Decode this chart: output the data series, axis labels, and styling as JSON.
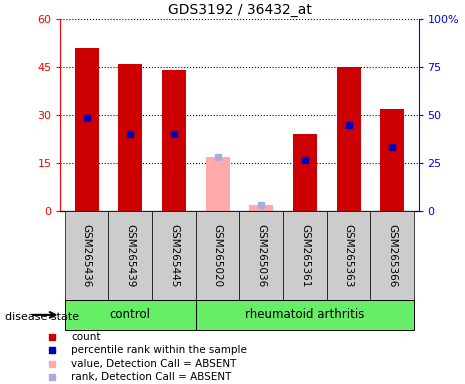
{
  "title": "GDS3192 / 36432_at",
  "samples": [
    "GSM265436",
    "GSM265439",
    "GSM265445",
    "GSM265020",
    "GSM265036",
    "GSM265361",
    "GSM265363",
    "GSM265366"
  ],
  "count_values": [
    51,
    46,
    44,
    null,
    null,
    24,
    45,
    32
  ],
  "count_absent": [
    null,
    null,
    null,
    17,
    2,
    null,
    null,
    null
  ],
  "percentile_values": [
    29,
    24,
    24,
    null,
    null,
    16,
    27,
    20
  ],
  "percentile_absent": [
    null,
    null,
    null,
    17,
    2,
    null,
    null,
    null
  ],
  "ylim_left": [
    0,
    60
  ],
  "ylim_right": [
    0,
    100
  ],
  "yticks_left": [
    0,
    15,
    30,
    45,
    60
  ],
  "ytick_labels_left": [
    "0",
    "15",
    "30",
    "45",
    "60"
  ],
  "yticks_right": [
    0,
    25,
    50,
    75,
    100
  ],
  "ytick_labels_right": [
    "0",
    "25",
    "50",
    "75",
    "100%"
  ],
  "bar_color_present": "#cc0000",
  "bar_color_absent": "#ffaaaa",
  "dot_color_present": "#0000bb",
  "dot_color_absent": "#aaaadd",
  "group_bg_color": "#66ee66",
  "sample_bg_color": "#cccccc",
  "bar_width": 0.55,
  "dot_size": 4,
  "group_info": [
    {
      "label": "control",
      "start": 0,
      "end": 3
    },
    {
      "label": "rheumatoid arthritis",
      "start": 3,
      "end": 8
    }
  ],
  "legend_items": [
    {
      "color": "#cc0000",
      "label": "count"
    },
    {
      "color": "#0000bb",
      "label": "percentile rank within the sample"
    },
    {
      "color": "#ffaaaa",
      "label": "value, Detection Call = ABSENT"
    },
    {
      "color": "#aaaadd",
      "label": "rank, Detection Call = ABSENT"
    }
  ]
}
